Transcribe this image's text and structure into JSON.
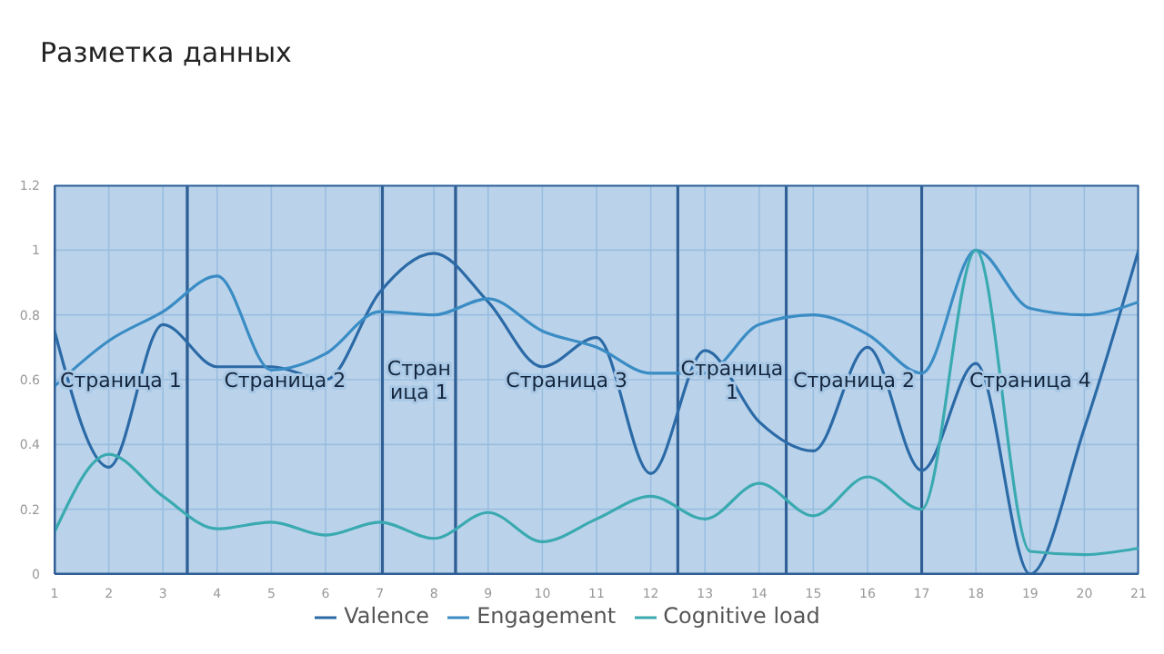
{
  "chart_data": {
    "type": "line",
    "title": "Разметка данных",
    "x": [
      1,
      2,
      3,
      4,
      5,
      6,
      7,
      8,
      9,
      10,
      11,
      12,
      13,
      14,
      15,
      16,
      17,
      18,
      19,
      20,
      21
    ],
    "series": [
      {
        "name": "Valence",
        "color": "#2b6aa6",
        "values": [
          0.75,
          0.33,
          0.77,
          0.64,
          0.64,
          0.6,
          0.87,
          0.99,
          0.84,
          0.64,
          0.73,
          0.31,
          0.69,
          0.47,
          0.38,
          0.7,
          0.32,
          0.65,
          0,
          0.45,
          1
        ]
      },
      {
        "name": "Engagement",
        "color": "#3a8cc4",
        "values": [
          0.58,
          0.72,
          0.81,
          0.92,
          0.63,
          0.68,
          0.81,
          0.8,
          0.85,
          0.75,
          0.7,
          0.62,
          0.62,
          0.77,
          0.8,
          0.74,
          0.62,
          1,
          0.82,
          0.8,
          0.84
        ]
      },
      {
        "name": "Cognitive load",
        "color": "#3aaab0",
        "values": [
          0.13,
          0.37,
          0.24,
          0.14,
          0.16,
          0.12,
          0.16,
          0.11,
          0.19,
          0.1,
          0.17,
          0.24,
          0.17,
          0.28,
          0.18,
          0.3,
          0.2,
          1,
          0.07,
          0.06,
          0.08
        ]
      }
    ],
    "xlim": [
      1,
      21
    ],
    "xticks": [
      1,
      2,
      3,
      4,
      5,
      6,
      7,
      8,
      9,
      10,
      11,
      12,
      13,
      14,
      15,
      16,
      17,
      18,
      19,
      20,
      21
    ],
    "ylim": [
      0,
      1.2
    ],
    "yticks": [
      0,
      0.2,
      0.4,
      0.6,
      0.8,
      1,
      1.2
    ],
    "bands": [
      {
        "axis": "x",
        "from": 1,
        "to": 3.45,
        "label": "Страница 1",
        "color": "#a9c8e6"
      },
      {
        "axis": "x",
        "from": 3.45,
        "to": 7.05,
        "label": "Страница 2",
        "color": "#a9c8e6"
      },
      {
        "axis": "x",
        "from": 7.05,
        "to": 8.4,
        "label": "Страница 1",
        "color": "#a9c8e6"
      },
      {
        "axis": "x",
        "from": 8.4,
        "to": 12.5,
        "label": "Страница 3",
        "color": "#a9c8e6"
      },
      {
        "axis": "x",
        "from": 12.5,
        "to": 14.5,
        "label": "Страница 1",
        "color": "#a9c8e6"
      },
      {
        "axis": "x",
        "from": 14.5,
        "to": 17,
        "label": "Страница 2",
        "color": "#a9c8e6"
      },
      {
        "axis": "x",
        "from": 17,
        "to": 21,
        "label": "Страница 4",
        "color": "#a9c8e6"
      }
    ],
    "grid": true,
    "legend": "bottom",
    "marker": "none",
    "line_style": "solid"
  }
}
